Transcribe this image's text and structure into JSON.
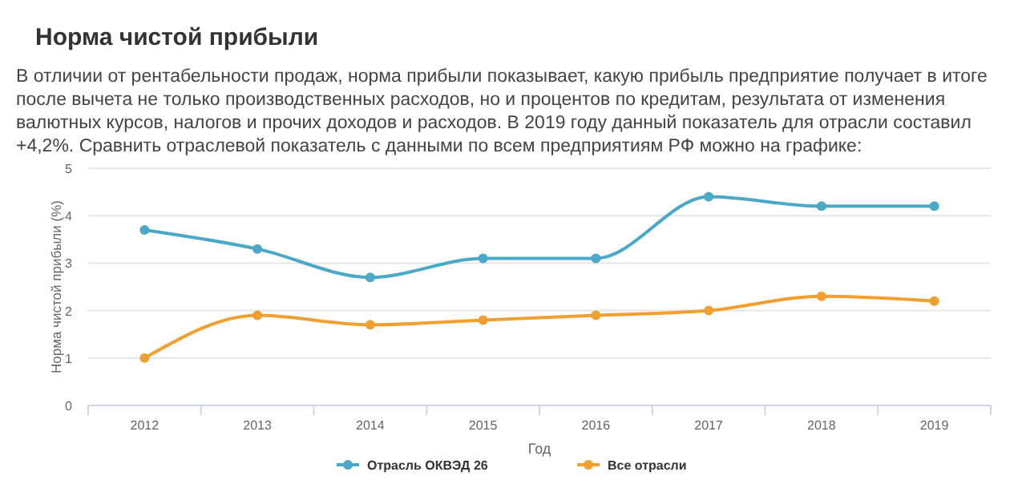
{
  "chart_data": {
    "type": "line",
    "title": "Норма чистой прибыли",
    "subtitle": "В отличии от рентабельности продаж, норма прибыли показывает, какую прибыль предприятие получает в итоге после вычета не только производственных расходов, но и процентов по кредитам, результата от изменения валютных курсов, налогов и прочих доходов и расходов. В 2019 году данный показатель для отрасли составил +4,2%. Сравнить отраслевой показатель с данными по всем предприятиям РФ можно на графике:",
    "xlabel": "Год",
    "ylabel": "Норма чистой прибыли (%)",
    "categories": [
      "2012",
      "2013",
      "2014",
      "2015",
      "2016",
      "2017",
      "2018",
      "2019"
    ],
    "series": [
      {
        "name": "Отрасль ОКВЭД 26",
        "color": "#4aa8c9",
        "values": [
          3.7,
          3.3,
          2.7,
          3.1,
          3.1,
          4.4,
          4.2,
          4.2
        ]
      },
      {
        "name": "Все отрасли",
        "color": "#f0a030",
        "values": [
          1.0,
          1.9,
          1.7,
          1.8,
          1.9,
          2.0,
          2.3,
          2.2
        ]
      }
    ],
    "ylim": [
      0,
      5
    ],
    "yticks": [
      0,
      1,
      2,
      3,
      4,
      5
    ],
    "grid": "y",
    "legend": "bottom",
    "marker": "circle",
    "line_style": "solid"
  }
}
